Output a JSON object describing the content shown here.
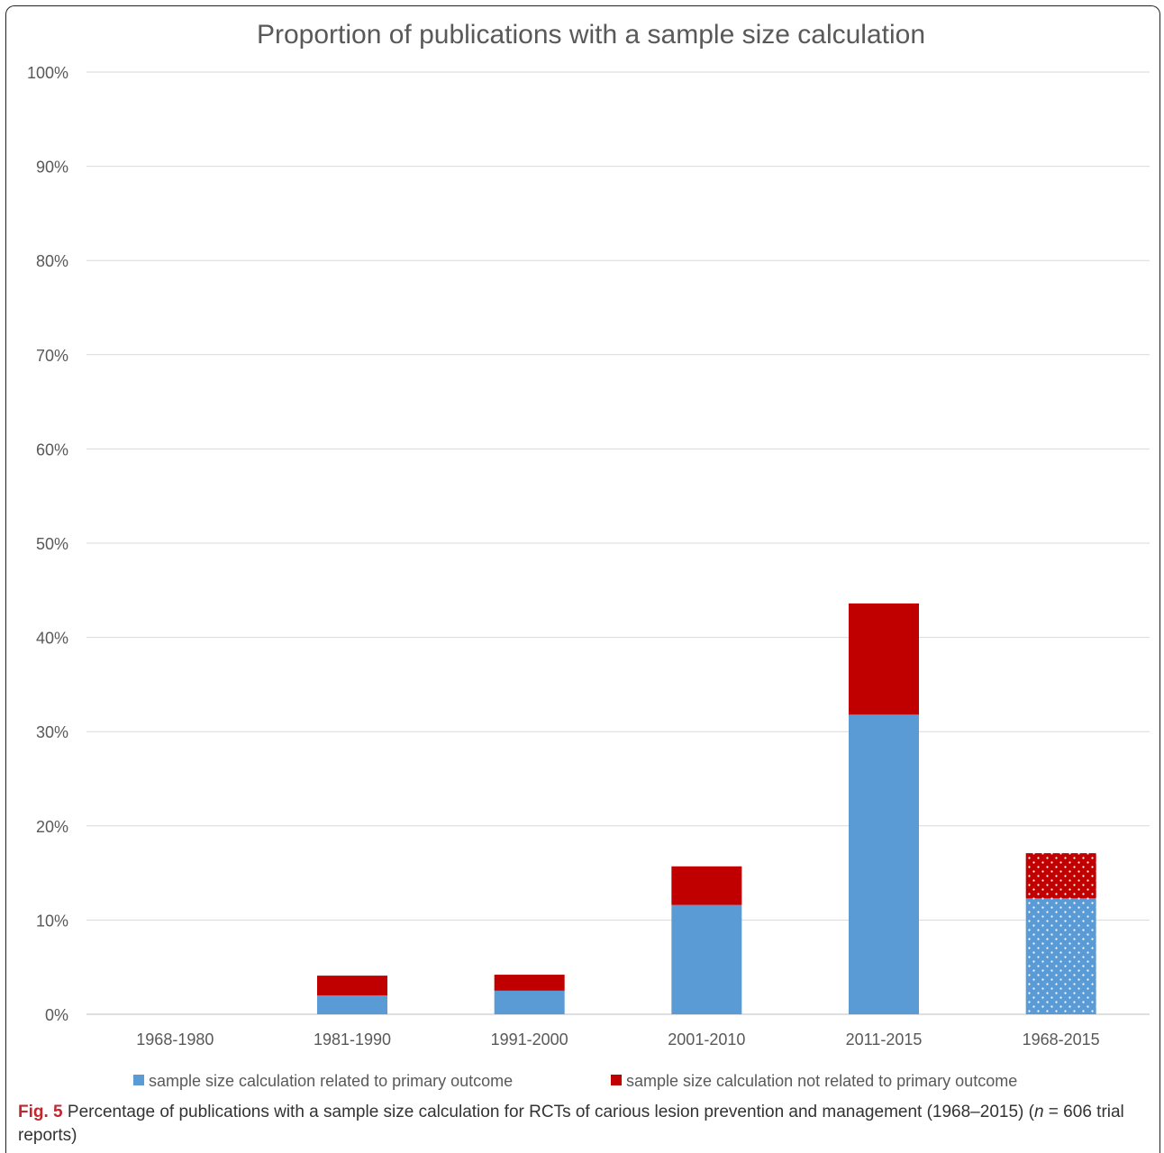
{
  "chart_data": {
    "type": "bar",
    "stacked": true,
    "title": "Proportion of publications with a sample size calculation",
    "categories": [
      "1968-1980",
      "1981-1990",
      "1991-2000",
      "2001-2010",
      "2011-2015",
      "1968-2015"
    ],
    "series": [
      {
        "name": "sample size calculation related to primary outcome",
        "color": "#5b9bd5",
        "values": [
          0,
          2.0,
          2.5,
          11.6,
          31.8,
          12.3
        ]
      },
      {
        "name": "sample size calculation not related to primary outcome",
        "color": "#c00000",
        "values": [
          0,
          2.1,
          1.7,
          4.1,
          11.8,
          4.8
        ]
      }
    ],
    "patterned_categories": [
      "1968-2015"
    ],
    "pattern": "dotted",
    "ylim": [
      0,
      100
    ],
    "yticks": [
      "0%",
      "10%",
      "20%",
      "30%",
      "40%",
      "50%",
      "60%",
      "70%",
      "80%",
      "90%",
      "100%"
    ],
    "grid": true,
    "legend": "bottom",
    "xlabel": "",
    "ylabel": ""
  },
  "caption": {
    "label": "Fig. 5",
    "text_before": " Percentage of publications with a sample size calculation for RCTs of carious lesion prevention and management (1968–2015) (",
    "n_symbol": "n",
    "text_after": " = 606 trial reports)"
  }
}
